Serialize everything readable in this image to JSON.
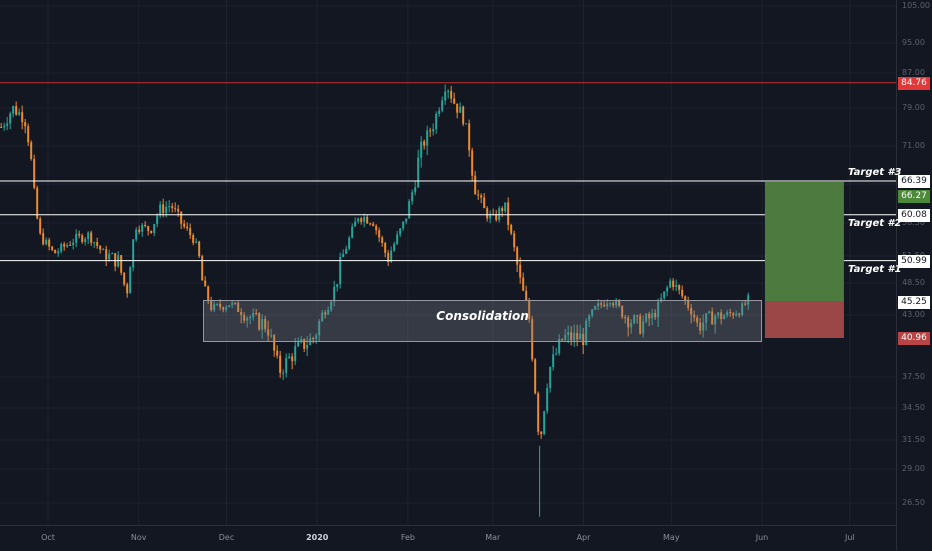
{
  "chart_data": {
    "type": "candlestick",
    "y_ticks": [
      "105.00",
      "95.00",
      "87.00",
      "79.00",
      "71.00",
      "66.00",
      "58.50",
      "51.50",
      "48.50",
      "43.00",
      "37.50",
      "34.50",
      "31.50",
      "29.00",
      "26.50"
    ],
    "x_ticks": [
      {
        "label": "Oct",
        "bold": false
      },
      {
        "label": "Nov",
        "bold": false
      },
      {
        "label": "Dec",
        "bold": false
      },
      {
        "label": "2020",
        "bold": true
      },
      {
        "label": "Feb",
        "bold": false
      },
      {
        "label": "Mar",
        "bold": false
      },
      {
        "label": "Apr",
        "bold": false
      },
      {
        "label": "May",
        "bold": false
      },
      {
        "label": "Jun",
        "bold": false
      },
      {
        "label": "Jul",
        "bold": false
      }
    ],
    "price_path": [
      [
        "2019-09-15",
        75
      ],
      [
        "2019-09-19",
        79
      ],
      [
        "2019-09-23",
        77
      ],
      [
        "2019-09-25",
        70
      ],
      [
        "2019-09-28",
        56
      ],
      [
        "2019-10-03",
        52
      ],
      [
        "2019-10-10",
        55
      ],
      [
        "2019-10-15",
        56
      ],
      [
        "2019-10-20",
        52
      ],
      [
        "2019-10-25",
        51
      ],
      [
        "2019-10-28",
        47
      ],
      [
        "2019-10-31",
        58
      ],
      [
        "2019-11-05",
        57
      ],
      [
        "2019-11-08",
        61
      ],
      [
        "2019-11-12",
        62
      ],
      [
        "2019-11-16",
        58
      ],
      [
        "2019-11-20",
        55
      ],
      [
        "2019-11-23",
        48
      ],
      [
        "2019-11-26",
        44
      ],
      [
        "2019-12-02",
        45
      ],
      [
        "2019-12-08",
        43
      ],
      [
        "2019-12-15",
        42
      ],
      [
        "2019-12-19",
        38
      ],
      [
        "2019-12-25",
        40
      ],
      [
        "2019-12-31",
        41
      ],
      [
        "2020-01-05",
        45
      ],
      [
        "2020-01-10",
        52
      ],
      [
        "2020-01-15",
        60
      ],
      [
        "2020-01-20",
        59
      ],
      [
        "2020-01-25",
        51
      ],
      [
        "2020-01-31",
        59
      ],
      [
        "2020-02-05",
        70
      ],
      [
        "2020-02-10",
        76
      ],
      [
        "2020-02-14",
        85
      ],
      [
        "2020-02-17",
        80
      ],
      [
        "2020-02-20",
        77
      ],
      [
        "2020-02-24",
        65
      ],
      [
        "2020-02-27",
        61
      ],
      [
        "2020-03-01",
        59
      ],
      [
        "2020-03-05",
        62
      ],
      [
        "2020-03-09",
        51
      ],
      [
        "2020-03-13",
        44
      ],
      [
        "2020-03-15",
        38
      ],
      [
        "2020-03-17",
        31
      ],
      [
        "2020-03-20",
        38
      ],
      [
        "2020-03-25",
        41
      ],
      [
        "2020-04-01",
        41
      ],
      [
        "2020-04-05",
        44
      ],
      [
        "2020-04-10",
        46
      ],
      [
        "2020-04-15",
        43
      ],
      [
        "2020-04-20",
        42
      ],
      [
        "2020-04-25",
        43
      ],
      [
        "2020-05-01",
        49
      ],
      [
        "2020-05-05",
        46
      ],
      [
        "2020-05-10",
        42
      ],
      [
        "2020-05-15",
        43
      ],
      [
        "2020-05-20",
        43
      ],
      [
        "2020-05-25",
        44
      ],
      [
        "2020-05-28",
        46
      ]
    ],
    "horizontal_levels": [
      {
        "price": "84.76",
        "color": "#c43030"
      },
      {
        "price": "66.39",
        "color": "#ffffff",
        "label": "Target #3"
      },
      {
        "price": "60.08",
        "color": "#ffffff",
        "label": "Target #2"
      },
      {
        "price": "50.99",
        "color": "#ffffff",
        "label": "Target #1"
      }
    ],
    "consolidation_zone": {
      "label": "Consolidation",
      "high": 45.5,
      "low": 40.6,
      "from": "2019-11-23",
      "to": "2020-06-01"
    },
    "position": {
      "entry": "45.25",
      "target": "66.27",
      "stop": "40.96",
      "from": "2020-06-02",
      "to": "2020-06-29",
      "profit_color": "#4c7a3f",
      "loss_color": "#9c4747"
    },
    "price_tags": [
      {
        "value": "84.76",
        "bg": "#e23838",
        "fg": "#ffffff"
      },
      {
        "value": "66.39",
        "bg": "#ffffff",
        "fg": "#131722"
      },
      {
        "value": "66.27",
        "bg": "#4c8a3a",
        "fg": "#ffffff"
      },
      {
        "value": "60.08",
        "bg": "#ffffff",
        "fg": "#131722"
      },
      {
        "value": "50.99",
        "bg": "#ffffff",
        "fg": "#131722"
      },
      {
        "value": "45.25",
        "bg": "#ffffff",
        "fg": "#131722"
      },
      {
        "value": "40.96",
        "bg": "#b84545",
        "fg": "#ffffff"
      }
    ],
    "colors": {
      "background": "#131722",
      "up": "#26a69a",
      "down": "#ef8a2f",
      "grid": "#1e222d"
    }
  }
}
